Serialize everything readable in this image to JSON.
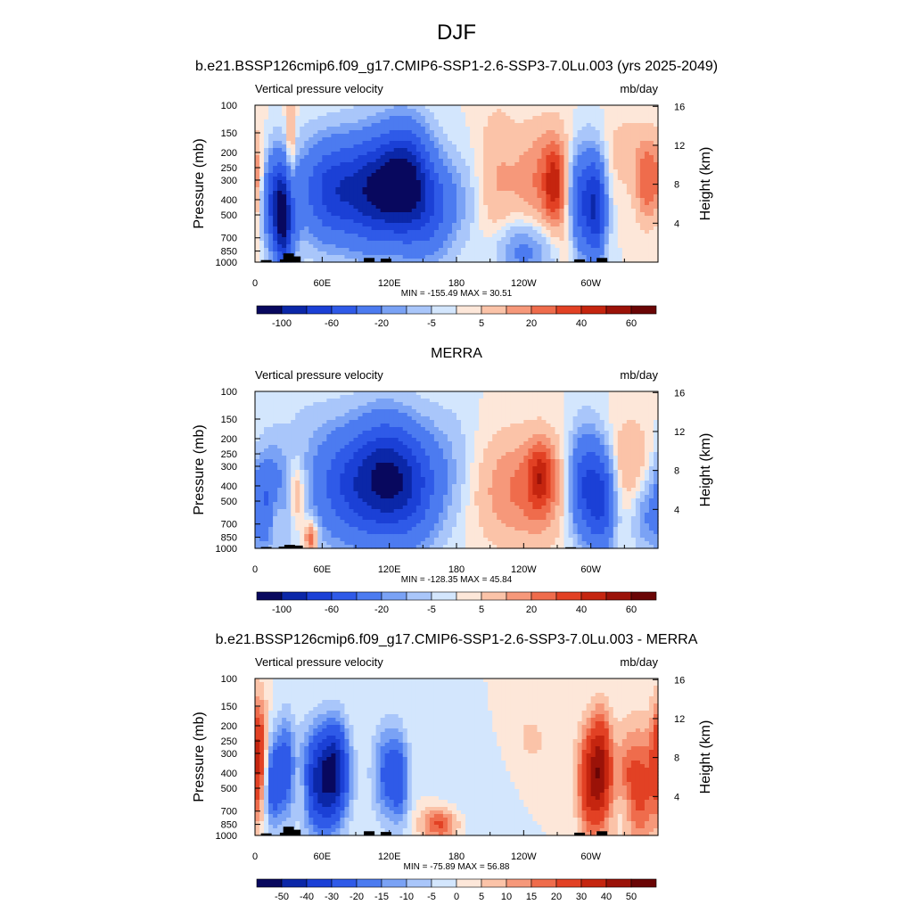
{
  "figure": {
    "title": "DJF"
  },
  "chart_data": [
    {
      "type": "heatmap",
      "title": "b.e21.BSSP126cmip6.f09_g17.CMIP6-SSP1-2.6-SSP3-7.0Lu.003 (yrs 2025-2049)",
      "left_label": "Vertical pressure velocity",
      "right_label": "mb/day",
      "ylabel": "Pressure (mb)",
      "y2label": "Height (km)",
      "x_ticks": [
        "0",
        "60E",
        "120E",
        "180",
        "120W",
        "60W"
      ],
      "y_ticks": [
        100,
        150,
        200,
        250,
        300,
        400,
        500,
        700,
        850,
        1000
      ],
      "y2_ticks": [
        16,
        12,
        8,
        4
      ],
      "y_scale": "log",
      "ylim": [
        1000,
        100
      ],
      "stats": "MIN = -155.49  MAX =  30.51",
      "colorbar": {
        "labels": [
          "-100",
          "-60",
          "-20",
          "-5",
          "5",
          "20",
          "40",
          "60"
        ],
        "colors": [
          "#08085e",
          "#0b27a8",
          "#1b40d6",
          "#2f5ae8",
          "#4c7bf0",
          "#7aa2f5",
          "#a9c6fa",
          "#d3e6fd",
          "#fde7d9",
          "#fbc3a8",
          "#f6987a",
          "#ef6c4c",
          "#e24124",
          "#c5250f",
          "#9b1208",
          "#6a0505"
        ]
      },
      "features": [
        {
          "x": 20,
          "p": 400,
          "w": 10,
          "h": 1.3,
          "v": -70
        },
        {
          "x": 26,
          "p": 600,
          "w": 6,
          "h": 1.2,
          "v": -80
        },
        {
          "x": 32,
          "p": 300,
          "w": 3,
          "h": 2.5,
          "v": 25
        },
        {
          "x": 70,
          "p": 350,
          "w": 20,
          "h": 1.4,
          "v": -70
        },
        {
          "x": 110,
          "p": 350,
          "w": 18,
          "h": 1.5,
          "v": -90
        },
        {
          "x": 135,
          "p": 300,
          "w": 14,
          "h": 1.5,
          "v": -85
        },
        {
          "x": 155,
          "p": 450,
          "w": 14,
          "h": 1.4,
          "v": -45
        },
        {
          "x": 180,
          "p": 400,
          "w": 14,
          "h": 1.3,
          "v": -12
        },
        {
          "x": 215,
          "p": 300,
          "w": 12,
          "h": 2.3,
          "v": 10
        },
        {
          "x": 260,
          "p": 300,
          "w": 22,
          "h": 1.6,
          "v": 22
        },
        {
          "x": 267,
          "p": 320,
          "w": 6,
          "h": 1.1,
          "v": 30
        },
        {
          "x": 240,
          "p": 850,
          "w": 18,
          "h": 0.9,
          "v": -25
        },
        {
          "x": 292,
          "p": 400,
          "w": 9,
          "h": 1.5,
          "v": -60
        },
        {
          "x": 305,
          "p": 450,
          "w": 6,
          "h": 1.4,
          "v": -65
        },
        {
          "x": 330,
          "p": 200,
          "w": 12,
          "h": 1.2,
          "v": 8
        },
        {
          "x": 352,
          "p": 300,
          "w": 8,
          "h": 1.2,
          "v": 30
        },
        {
          "x": 5,
          "p": 350,
          "w": 5,
          "h": 1.5,
          "v": 15
        },
        {
          "x": 280,
          "p": 650,
          "w": 6,
          "h": 1.3,
          "v": 10
        }
      ],
      "topography": [
        {
          "lon": 10,
          "p": 970
        },
        {
          "lon": 27,
          "p": 960
        },
        {
          "lon": 30,
          "p": 880
        },
        {
          "lon": 36,
          "p": 920
        },
        {
          "lon": 102,
          "p": 940
        },
        {
          "lon": 117,
          "p": 950
        },
        {
          "lon": 290,
          "p": 960
        },
        {
          "lon": 310,
          "p": 940
        }
      ]
    },
    {
      "type": "heatmap",
      "title": "MERRA",
      "left_label": "Vertical pressure velocity",
      "right_label": "mb/day",
      "ylabel": "Pressure (mb)",
      "y2label": "Height (km)",
      "x_ticks": [
        "0",
        "60E",
        "120E",
        "180",
        "120W",
        "60W"
      ],
      "y_ticks": [
        100,
        150,
        200,
        250,
        300,
        400,
        500,
        700,
        850,
        1000
      ],
      "y2_ticks": [
        16,
        12,
        8,
        4
      ],
      "y_scale": "log",
      "ylim": [
        1000,
        100
      ],
      "stats": "MIN = -128.35  MAX =  45.84",
      "colorbar": {
        "labels": [
          "-100",
          "-60",
          "-20",
          "-5",
          "5",
          "20",
          "40",
          "60"
        ],
        "colors": [
          "#08085e",
          "#0b27a8",
          "#1b40d6",
          "#2f5ae8",
          "#4c7bf0",
          "#7aa2f5",
          "#a9c6fa",
          "#d3e6fd",
          "#fde7d9",
          "#fbc3a8",
          "#f6987a",
          "#ef6c4c",
          "#e24124",
          "#c5250f",
          "#9b1208",
          "#6a0505"
        ]
      },
      "features": [
        {
          "x": 12,
          "p": 500,
          "w": 12,
          "h": 1.4,
          "v": -45
        },
        {
          "x": 19,
          "p": 600,
          "w": 5,
          "h": 1.0,
          "v": 25
        },
        {
          "x": 37,
          "p": 450,
          "w": 6,
          "h": 1.0,
          "v": 22
        },
        {
          "x": 50,
          "p": 850,
          "w": 4,
          "h": 0.5,
          "v": 30
        },
        {
          "x": 85,
          "p": 400,
          "w": 22,
          "h": 1.6,
          "v": -55
        },
        {
          "x": 115,
          "p": 350,
          "w": 18,
          "h": 1.6,
          "v": -70
        },
        {
          "x": 140,
          "p": 400,
          "w": 18,
          "h": 1.6,
          "v": -55
        },
        {
          "x": 175,
          "p": 300,
          "w": 16,
          "h": 1.7,
          "v": -10
        },
        {
          "x": 240,
          "p": 420,
          "w": 30,
          "h": 1.6,
          "v": 22
        },
        {
          "x": 255,
          "p": 350,
          "w": 8,
          "h": 1.0,
          "v": 32
        },
        {
          "x": 295,
          "p": 400,
          "w": 10,
          "h": 1.5,
          "v": -60
        },
        {
          "x": 310,
          "p": 500,
          "w": 8,
          "h": 1.4,
          "v": -55
        },
        {
          "x": 335,
          "p": 280,
          "w": 15,
          "h": 1.3,
          "v": 12
        },
        {
          "x": 348,
          "p": 650,
          "w": 8,
          "h": 1.0,
          "v": -15
        },
        {
          "x": 45,
          "p": 250,
          "w": 20,
          "h": 2.0,
          "v": -6
        }
      ],
      "topography": [
        {
          "lon": 10,
          "p": 980
        },
        {
          "lon": 26,
          "p": 975
        },
        {
          "lon": 31,
          "p": 950
        },
        {
          "lon": 38,
          "p": 960
        },
        {
          "lon": 282,
          "p": 985
        }
      ]
    },
    {
      "type": "heatmap",
      "title": "b.e21.BSSP126cmip6.f09_g17.CMIP6-SSP1-2.6-SSP3-7.0Lu.003 - MERRA",
      "left_label": "Vertical pressure velocity",
      "right_label": "mb/day",
      "ylabel": "Pressure (mb)",
      "y2label": "Height (km)",
      "x_ticks": [
        "0",
        "60E",
        "120E",
        "180",
        "120W",
        "60W"
      ],
      "y_ticks": [
        100,
        150,
        200,
        250,
        300,
        400,
        500,
        700,
        850,
        1000
      ],
      "y2_ticks": [
        16,
        12,
        8,
        4
      ],
      "y_scale": "log",
      "ylim": [
        1000,
        100
      ],
      "stats": "MIN = -75.89  MAX =  56.88",
      "colorbar": {
        "labels": [
          "-50",
          "-40",
          "-30",
          "-20",
          "-15",
          "-10",
          "-5",
          "0",
          "5",
          "10",
          "15",
          "20",
          "30",
          "40",
          "50"
        ],
        "colors": [
          "#08085e",
          "#0b27a8",
          "#1b40d6",
          "#2f5ae8",
          "#4c7bf0",
          "#7aa2f5",
          "#a9c6fa",
          "#d3e6fd",
          "#fde7d9",
          "#fbc3a8",
          "#f6987a",
          "#ef6c4c",
          "#e24124",
          "#c5250f",
          "#9b1208",
          "#6a0505"
        ]
      },
      "features": [
        {
          "x": 3,
          "p": 300,
          "w": 6,
          "h": 1.6,
          "v": 30
        },
        {
          "x": 16,
          "p": 450,
          "w": 6,
          "h": 1.4,
          "v": -30
        },
        {
          "x": 28,
          "p": 350,
          "w": 5,
          "h": 1.5,
          "v": -20
        },
        {
          "x": 42,
          "p": 500,
          "w": 5,
          "h": 1.0,
          "v": 10
        },
        {
          "x": 60,
          "p": 450,
          "w": 14,
          "h": 1.5,
          "v": -45
        },
        {
          "x": 72,
          "p": 350,
          "w": 8,
          "h": 1.3,
          "v": -25
        },
        {
          "x": 118,
          "p": 400,
          "w": 9,
          "h": 1.4,
          "v": -22
        },
        {
          "x": 130,
          "p": 450,
          "w": 6,
          "h": 1.3,
          "v": -18
        },
        {
          "x": 165,
          "p": 850,
          "w": 12,
          "h": 0.5,
          "v": 22
        },
        {
          "x": 200,
          "p": 500,
          "w": 25,
          "h": 1.8,
          "v": -5
        },
        {
          "x": 245,
          "p": 250,
          "w": 20,
          "h": 1.5,
          "v": 6
        },
        {
          "x": 300,
          "p": 450,
          "w": 8,
          "h": 1.6,
          "v": 35
        },
        {
          "x": 310,
          "p": 350,
          "w": 6,
          "h": 1.5,
          "v": 30
        },
        {
          "x": 340,
          "p": 500,
          "w": 14,
          "h": 1.8,
          "v": 25
        },
        {
          "x": 330,
          "p": 700,
          "w": 6,
          "h": 0.8,
          "v": -10
        }
      ],
      "topography": [
        {
          "lon": 10,
          "p": 970
        },
        {
          "lon": 27,
          "p": 960
        },
        {
          "lon": 30,
          "p": 880
        },
        {
          "lon": 36,
          "p": 920
        },
        {
          "lon": 102,
          "p": 940
        },
        {
          "lon": 117,
          "p": 950
        },
        {
          "lon": 290,
          "p": 960
        },
        {
          "lon": 310,
          "p": 940
        }
      ]
    }
  ]
}
